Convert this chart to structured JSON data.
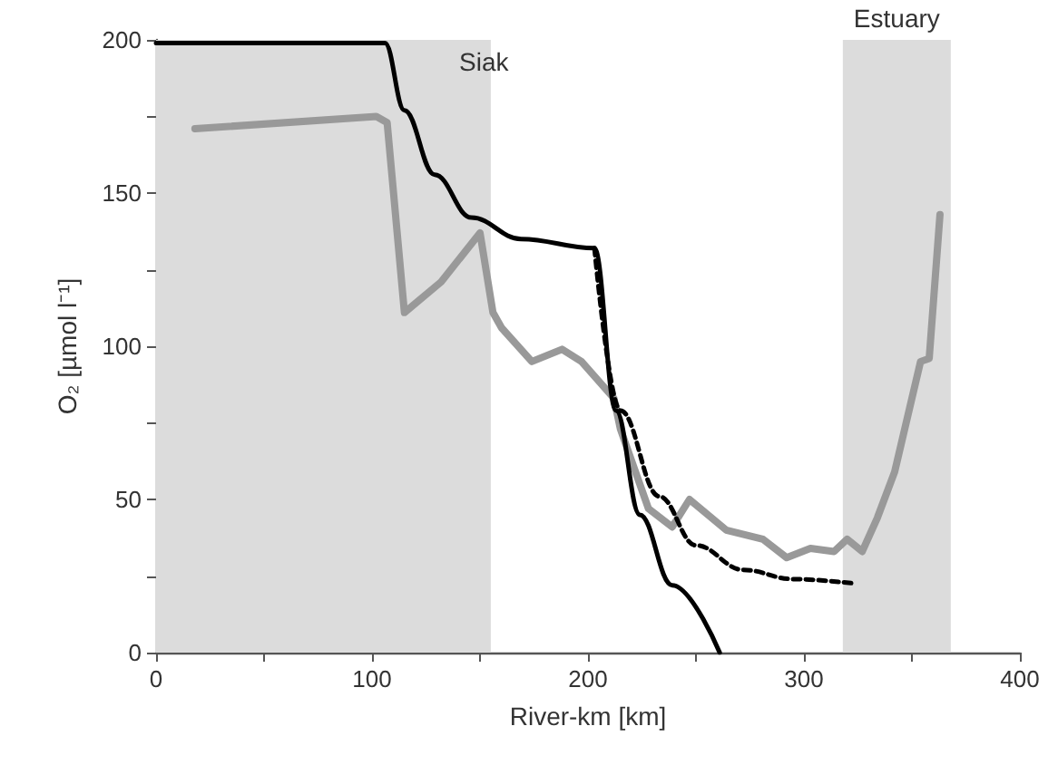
{
  "chart_data": {
    "type": "line",
    "title": "Siak",
    "xlabel": "River-km [km]",
    "ylabel": "O₂ [µmol l⁻¹]",
    "xlim": [
      0,
      400
    ],
    "xticks": [
      0,
      100,
      200,
      300,
      400
    ],
    "ylim": [
      0,
      200
    ],
    "yticks": [
      0,
      50,
      100,
      150,
      200
    ],
    "marker": "none",
    "bands": [
      {
        "axis": "x",
        "from": 0,
        "to": 155,
        "color": "#dcdcdc"
      },
      {
        "axis": "x",
        "from": 318,
        "to": 368,
        "label": "Estuary",
        "color": "#dcdcdc"
      }
    ],
    "series": [
      {
        "color": "#999999",
        "line_style": "solid",
        "x": [
          18,
          102,
          107,
          115,
          132,
          150,
          156,
          160,
          174,
          188,
          197,
          212,
          215,
          228,
          239,
          247,
          264,
          281,
          292,
          303,
          314,
          320,
          327,
          334,
          342,
          354,
          358,
          363
        ],
        "values": [
          171,
          175,
          173,
          111,
          121,
          137,
          111,
          106,
          95,
          99,
          95,
          83,
          73,
          47,
          41,
          50,
          40,
          37,
          31,
          34,
          33,
          37,
          33,
          44,
          59,
          95,
          96,
          143
        ]
      },
      {
        "color": "#000000",
        "line_style": "solid",
        "x": [
          0,
          106,
          115,
          129,
          146,
          169,
          203,
          213,
          224,
          239,
          261
        ],
        "values": [
          199,
          199,
          177,
          156,
          142,
          135,
          132,
          79,
          45,
          22,
          0
        ]
      },
      {
        "color": "#000000",
        "line_style": "dashed",
        "x": [
          203,
          215,
          233,
          250,
          272,
          295,
          324
        ],
        "values": [
          132,
          79,
          51,
          35,
          27,
          24,
          22.5
        ]
      }
    ]
  }
}
